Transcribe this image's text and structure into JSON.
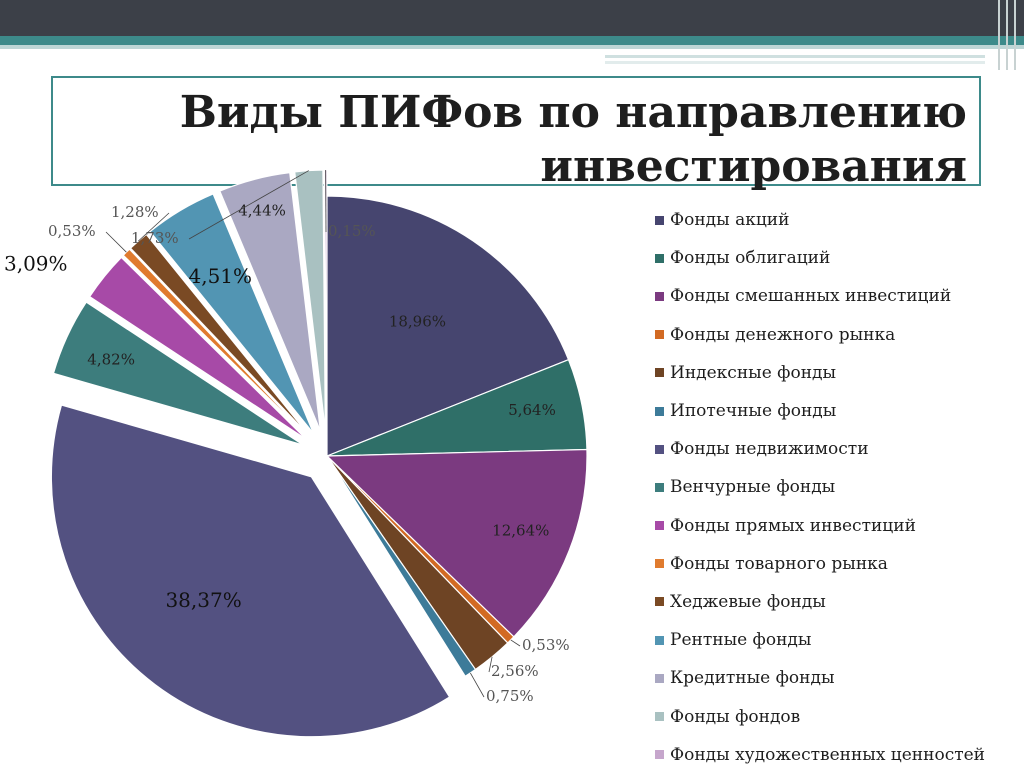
{
  "slide": {
    "title": "Виды ПИФов по направлению\nинвестирования"
  },
  "chart_data": {
    "type": "pie",
    "title": "Виды ПИФов по направлению инвестирования",
    "unit": "%",
    "start_angle_deg": 0,
    "direction": "clockwise",
    "legend_position": "right",
    "slices": [
      {
        "label": "Фонды акций",
        "value": 18.96,
        "value_label": "18,96%",
        "color": "#46456f",
        "exploded": false
      },
      {
        "label": "Фонды облигаций",
        "value": 5.64,
        "value_label": "5,64%",
        "color": "#2f6f68",
        "exploded": false
      },
      {
        "label": "Фонды смешанных инвестиций",
        "value": 12.64,
        "value_label": "12,64%",
        "color": "#7b3a80",
        "exploded": false
      },
      {
        "label": "Фонды денежного рынка",
        "value": 0.53,
        "value_label": "0,53%",
        "color": "#d26a23",
        "exploded": false
      },
      {
        "label": "Индексные фонды",
        "value": 2.56,
        "value_label": "2,56%",
        "color": "#6e4424",
        "exploded": false
      },
      {
        "label": "Ипотечные фонды",
        "value": 0.75,
        "value_label": "0,75%",
        "color": "#3d7b99",
        "exploded": false
      },
      {
        "label": "Фонды недвижимости",
        "value": 38.37,
        "value_label": "38,37%",
        "color": "#535181",
        "exploded": true
      },
      {
        "label": "Венчурные фонды",
        "value": 4.82,
        "value_label": "4,82%",
        "color": "#3d7d7d",
        "exploded": true
      },
      {
        "label": "Фонды прямых инвестиций",
        "value": 3.09,
        "value_label": "3,09%",
        "color": "#a74aa7",
        "exploded": true
      },
      {
        "label": "Фонды товарного рынка",
        "value": 0.53,
        "value_label": "0,53%",
        "color": "#e07b2e",
        "exploded": true
      },
      {
        "label": "Хеджевые фонды",
        "value": 1.28,
        "value_label": "1,28%",
        "color": "#7a4a24",
        "exploded": true
      },
      {
        "label": "Рентные фонды",
        "value": 4.51,
        "value_label": "4,51%",
        "color": "#5295b3",
        "exploded": true
      },
      {
        "label": "Кредитные фонды",
        "value": 4.44,
        "value_label": "4,44%",
        "color": "#aaa8c2",
        "exploded": true
      },
      {
        "label": "Фонды фондов",
        "value": 1.73,
        "value_label": "1,73%",
        "color": "#a9c1c1",
        "exploded": true
      },
      {
        "label": "Фонды художественных ценностей",
        "value": 0.15,
        "value_label": "0,15%",
        "color": "#c6a6cc",
        "exploded": true
      }
    ]
  }
}
